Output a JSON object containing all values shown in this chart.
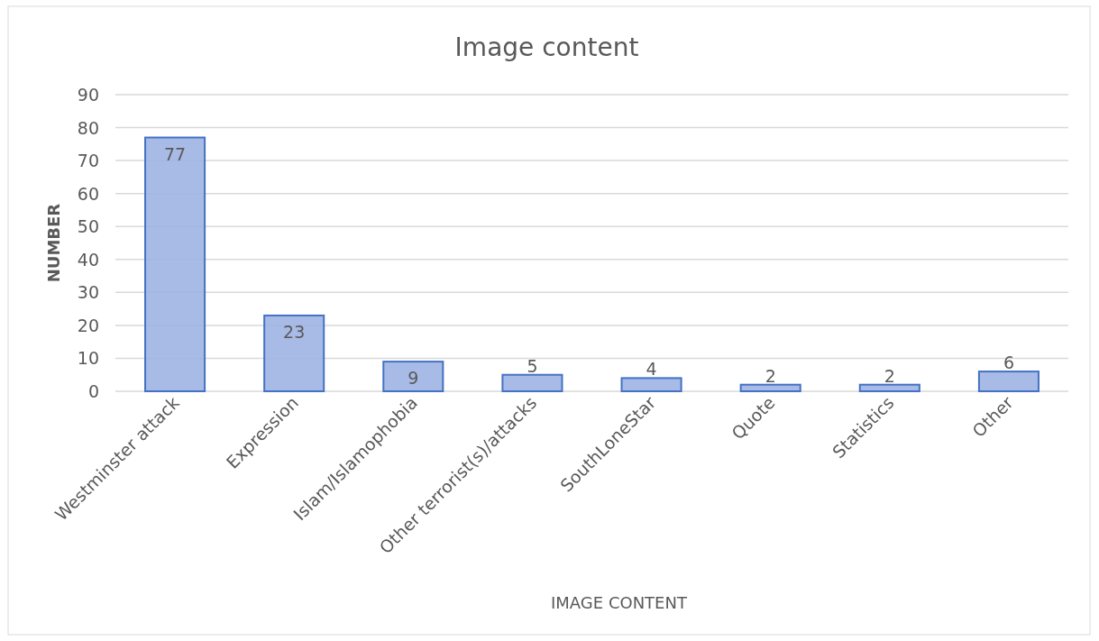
{
  "chart_data": {
    "type": "bar",
    "title": "Image content",
    "xlabel": "IMAGE CONTENT",
    "ylabel": "NUMBER",
    "categories": [
      "Westminster attack",
      "Expression",
      "Islam/Islamophobia",
      "Other terrorist(s)/attacks",
      "SouthLoneStar",
      "Quote",
      "Statistics",
      "Other"
    ],
    "values": [
      77,
      23,
      9,
      5,
      4,
      2,
      2,
      6
    ],
    "color": "#9fb2e3",
    "ylim": [
      0,
      90
    ],
    "yticks": [
      0,
      10,
      20,
      30,
      40,
      50,
      60,
      70,
      80,
      90
    ],
    "grid": "y",
    "data_labels": true
  }
}
